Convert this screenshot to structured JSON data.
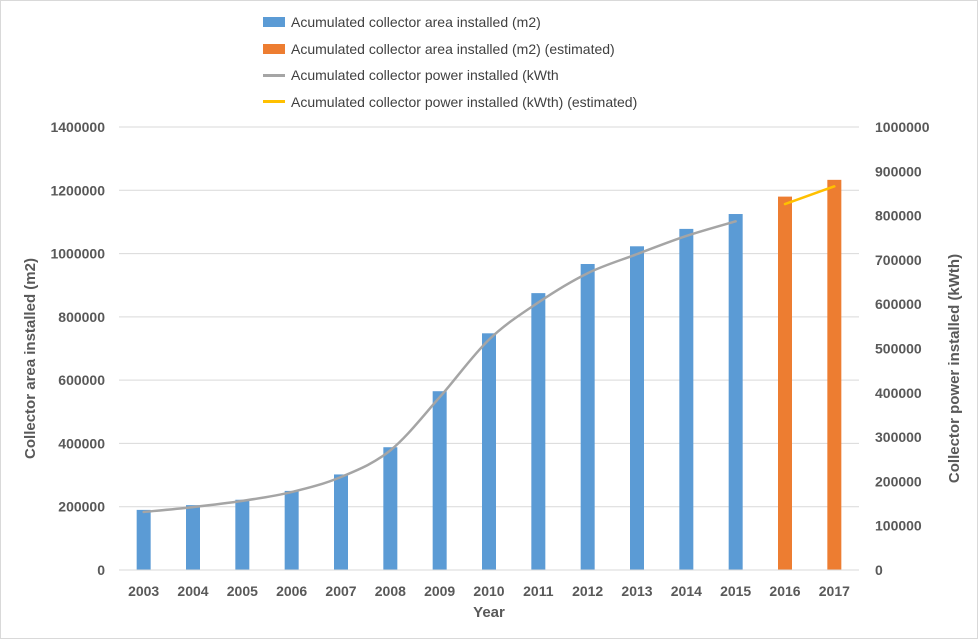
{
  "chart_data": {
    "type": "bar",
    "xlabel": "Year",
    "ylabel": "Collector area installed (m2)",
    "y2label": "Collector power installed (kWth)",
    "categories": [
      "2003",
      "2004",
      "2005",
      "2006",
      "2007",
      "2008",
      "2009",
      "2010",
      "2011",
      "2012",
      "2013",
      "2014",
      "2015",
      "2016",
      "2017"
    ],
    "ylim": [
      0,
      1400000
    ],
    "y2lim": [
      0,
      1000000
    ],
    "yticks": [
      "0",
      "200000",
      "400000",
      "600000",
      "800000",
      "1000000",
      "1200000",
      "1400000"
    ],
    "y2ticks": [
      "0",
      "100000",
      "200000",
      "300000",
      "400000",
      "500000",
      "600000",
      "700000",
      "800000",
      "900000",
      "1000000"
    ],
    "grid": true,
    "legend_position": "top",
    "series": [
      {
        "name": "Acumulated collector area installed (m2)",
        "kind": "bar",
        "axis": "left",
        "color": "#5b9bd5",
        "values": [
          190000,
          205000,
          222000,
          250000,
          302000,
          388000,
          565000,
          748000,
          875000,
          967000,
          1023000,
          1078000,
          1125000,
          null,
          null
        ]
      },
      {
        "name": "Acumulated collector area installed (m2) (estimated)",
        "kind": "bar",
        "axis": "left",
        "color": "#ed7d31",
        "values": [
          null,
          null,
          null,
          null,
          null,
          null,
          null,
          null,
          null,
          null,
          null,
          null,
          null,
          1180000,
          1233000
        ]
      },
      {
        "name": "Acumulated collector power installed (kWth",
        "kind": "line",
        "axis": "right",
        "color": "#a5a5a5",
        "values": [
          131000,
          142000,
          156000,
          176000,
          210000,
          270000,
          390000,
          520000,
          604000,
          670000,
          713000,
          754000,
          787000,
          null,
          null
        ]
      },
      {
        "name": "Acumulated collector power installed (kWth) (estimated)",
        "kind": "line",
        "axis": "right",
        "color": "#ffc000",
        "values": [
          null,
          null,
          null,
          null,
          null,
          null,
          null,
          null,
          null,
          null,
          null,
          null,
          null,
          826000,
          866000
        ]
      }
    ]
  }
}
